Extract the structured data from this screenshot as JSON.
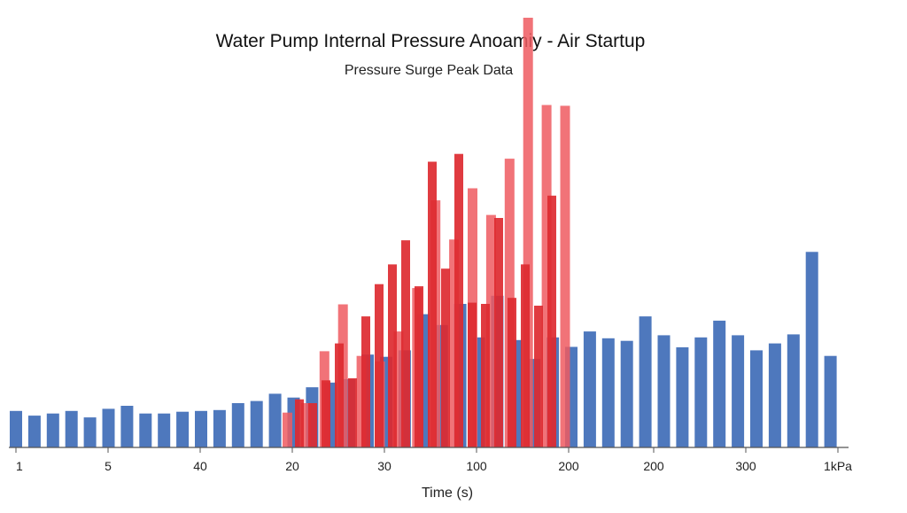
{
  "chart_data": {
    "type": "bar",
    "title": "Water Pump Internal Pressure Anoamiy - Air Startup",
    "subtitle": "Pressure Surge Peak Data",
    "xlabel": "Time (s)",
    "ylabel": "",
    "x_tick_labels": [
      "1",
      "5",
      "40",
      "20",
      "30",
      "100",
      "200",
      "200",
      "300",
      "1kPa"
    ],
    "ylim": [
      0,
      100
    ],
    "grid": false,
    "legend": "none",
    "colors": {
      "blue": "#4e78bd",
      "red_light": "#ee5a60",
      "red_dark": "#dd2a30",
      "axis": "#555555"
    },
    "series": [
      {
        "color": "blue",
        "values": [
          8.5,
          7.4,
          7.9,
          8.5,
          7.0,
          9.0,
          9.7,
          7.9,
          7.9,
          8.3,
          8.5,
          8.7,
          10.3,
          10.8,
          12.5,
          11.6,
          14.0,
          15.1,
          15.9,
          21.6,
          21.1,
          22.6,
          31.0,
          28.5,
          33.4,
          25.6,
          35.3,
          25.0,
          20.6,
          25.6,
          23.4,
          27.0,
          25.4,
          24.8,
          30.5,
          26.1,
          23.3,
          25.6,
          29.5,
          26.1,
          22.6,
          24.2,
          26.3,
          45.5,
          21.3
        ]
      },
      {
        "color": "red_light",
        "values": [
          8.1,
          10.3,
          22.4,
          33.3,
          21.3,
          20.0,
          27.0,
          37.1,
          57.5,
          48.4,
          60.3,
          54.1,
          67.2,
          100.0,
          79.7,
          79.5
        ]
      },
      {
        "color": "red_dark",
        "values": [
          11.2,
          10.3,
          15.6,
          24.2,
          16.1,
          30.5,
          38.0,
          42.6,
          48.2,
          37.5,
          66.5,
          41.6,
          68.3,
          33.7,
          33.4,
          53.4,
          34.8,
          42.6,
          33.0,
          58.6
        ]
      }
    ]
  }
}
